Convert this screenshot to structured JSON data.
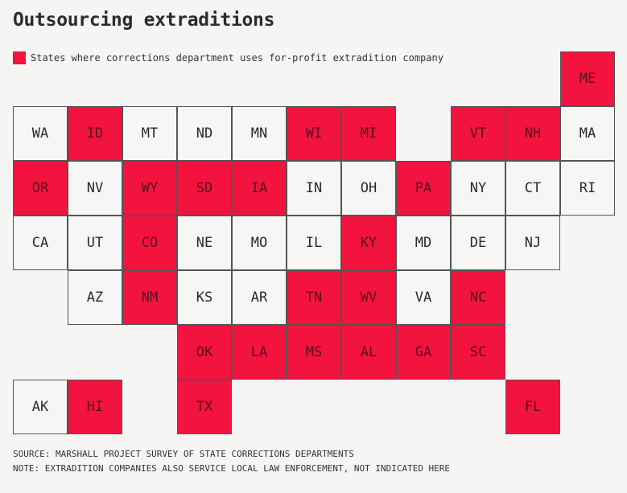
{
  "title": "Outsourcing extraditions",
  "legend": {
    "label": "States where corrections department uses for-profit extradition company",
    "color": "#f2133f"
  },
  "colors": {
    "yes": "#f2133f",
    "no": "#f6f6f4",
    "text_yes": "#5a0d1c",
    "text_no": "#2a2a2a"
  },
  "states": [
    {
      "abbr": "ME",
      "col": 10,
      "row": 0,
      "for_profit": true
    },
    {
      "abbr": "WA",
      "col": 0,
      "row": 1,
      "for_profit": false
    },
    {
      "abbr": "ID",
      "col": 1,
      "row": 1,
      "for_profit": true
    },
    {
      "abbr": "MT",
      "col": 2,
      "row": 1,
      "for_profit": false
    },
    {
      "abbr": "ND",
      "col": 3,
      "row": 1,
      "for_profit": false
    },
    {
      "abbr": "MN",
      "col": 4,
      "row": 1,
      "for_profit": false
    },
    {
      "abbr": "WI",
      "col": 5,
      "row": 1,
      "for_profit": true
    },
    {
      "abbr": "MI",
      "col": 6,
      "row": 1,
      "for_profit": true
    },
    {
      "abbr": "VT",
      "col": 8,
      "row": 1,
      "for_profit": true
    },
    {
      "abbr": "NH",
      "col": 9,
      "row": 1,
      "for_profit": true
    },
    {
      "abbr": "MA",
      "col": 10,
      "row": 1,
      "for_profit": false
    },
    {
      "abbr": "OR",
      "col": 0,
      "row": 2,
      "for_profit": true
    },
    {
      "abbr": "NV",
      "col": 1,
      "row": 2,
      "for_profit": false
    },
    {
      "abbr": "WY",
      "col": 2,
      "row": 2,
      "for_profit": true
    },
    {
      "abbr": "SD",
      "col": 3,
      "row": 2,
      "for_profit": true
    },
    {
      "abbr": "IA",
      "col": 4,
      "row": 2,
      "for_profit": true
    },
    {
      "abbr": "IN",
      "col": 5,
      "row": 2,
      "for_profit": false
    },
    {
      "abbr": "OH",
      "col": 6,
      "row": 2,
      "for_profit": false
    },
    {
      "abbr": "PA",
      "col": 7,
      "row": 2,
      "for_profit": true
    },
    {
      "abbr": "NY",
      "col": 8,
      "row": 2,
      "for_profit": false
    },
    {
      "abbr": "CT",
      "col": 9,
      "row": 2,
      "for_profit": false
    },
    {
      "abbr": "RI",
      "col": 10,
      "row": 2,
      "for_profit": false
    },
    {
      "abbr": "CA",
      "col": 0,
      "row": 3,
      "for_profit": false
    },
    {
      "abbr": "UT",
      "col": 1,
      "row": 3,
      "for_profit": false
    },
    {
      "abbr": "CO",
      "col": 2,
      "row": 3,
      "for_profit": true
    },
    {
      "abbr": "NE",
      "col": 3,
      "row": 3,
      "for_profit": false
    },
    {
      "abbr": "MO",
      "col": 4,
      "row": 3,
      "for_profit": false
    },
    {
      "abbr": "IL",
      "col": 5,
      "row": 3,
      "for_profit": false
    },
    {
      "abbr": "KY",
      "col": 6,
      "row": 3,
      "for_profit": true
    },
    {
      "abbr": "MD",
      "col": 7,
      "row": 3,
      "for_profit": false
    },
    {
      "abbr": "DE",
      "col": 8,
      "row": 3,
      "for_profit": false
    },
    {
      "abbr": "NJ",
      "col": 9,
      "row": 3,
      "for_profit": false
    },
    {
      "abbr": "AZ",
      "col": 1,
      "row": 4,
      "for_profit": false
    },
    {
      "abbr": "NM",
      "col": 2,
      "row": 4,
      "for_profit": true
    },
    {
      "abbr": "KS",
      "col": 3,
      "row": 4,
      "for_profit": false
    },
    {
      "abbr": "AR",
      "col": 4,
      "row": 4,
      "for_profit": false
    },
    {
      "abbr": "TN",
      "col": 5,
      "row": 4,
      "for_profit": true
    },
    {
      "abbr": "WV",
      "col": 6,
      "row": 4,
      "for_profit": true
    },
    {
      "abbr": "VA",
      "col": 7,
      "row": 4,
      "for_profit": false
    },
    {
      "abbr": "NC",
      "col": 8,
      "row": 4,
      "for_profit": true
    },
    {
      "abbr": "OK",
      "col": 3,
      "row": 5,
      "for_profit": true
    },
    {
      "abbr": "LA",
      "col": 4,
      "row": 5,
      "for_profit": true
    },
    {
      "abbr": "MS",
      "col": 5,
      "row": 5,
      "for_profit": true
    },
    {
      "abbr": "AL",
      "col": 6,
      "row": 5,
      "for_profit": true
    },
    {
      "abbr": "GA",
      "col": 7,
      "row": 5,
      "for_profit": true
    },
    {
      "abbr": "SC",
      "col": 8,
      "row": 5,
      "for_profit": true
    },
    {
      "abbr": "AK",
      "col": 0,
      "row": 6,
      "for_profit": false
    },
    {
      "abbr": "HI",
      "col": 1,
      "row": 6,
      "for_profit": true
    },
    {
      "abbr": "TX",
      "col": 3,
      "row": 6,
      "for_profit": true
    },
    {
      "abbr": "FL",
      "col": 9,
      "row": 6,
      "for_profit": true
    }
  ],
  "footer": {
    "source": "SOURCE: MARSHALL PROJECT SURVEY OF STATE CORRECTIONS DEPARTMENTS",
    "note": "NOTE: EXTRADITION COMPANIES ALSO SERVICE LOCAL LAW ENFORCEMENT, NOT INDICATED HERE"
  }
}
